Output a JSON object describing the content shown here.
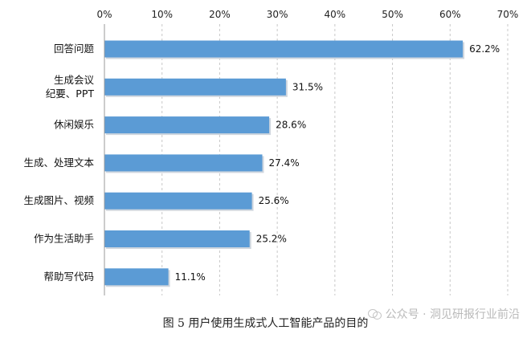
{
  "chart_data": {
    "type": "bar",
    "orientation": "horizontal",
    "categories": [
      [
        "回答问题"
      ],
      [
        "生成会议",
        "纪要、PPT"
      ],
      [
        "休闲娱乐"
      ],
      [
        "生成、处理文本"
      ],
      [
        "生成图片、视频"
      ],
      [
        "作为生活助手"
      ],
      [
        "帮助写代码"
      ]
    ],
    "values": [
      62.2,
      31.5,
      28.6,
      27.4,
      25.6,
      25.2,
      11.1
    ],
    "value_labels": [
      "62.2%",
      "31.5%",
      "28.6%",
      "27.4%",
      "25.6%",
      "25.2%",
      "11.1%"
    ],
    "xlim": [
      0,
      70
    ],
    "x_ticks": [
      0,
      10,
      20,
      30,
      40,
      50,
      60,
      70
    ],
    "x_tick_labels": [
      "0%",
      "10%",
      "20%",
      "30%",
      "40%",
      "50%",
      "60%",
      "70%"
    ],
    "x_axis_position": "top",
    "grid": "vertical-dashed",
    "bar_color": "#5b9bd5",
    "caption": "图 5 用户使用生成式人工智能产品的目的"
  },
  "watermark": {
    "text": "公众号 · 洞见研报行业前沿",
    "icon": "wechat-icon"
  }
}
